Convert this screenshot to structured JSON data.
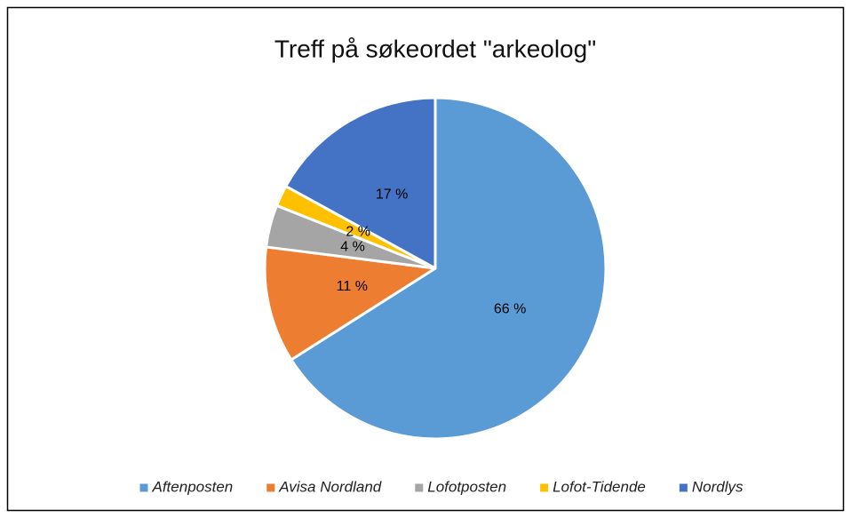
{
  "chart_data": {
    "type": "pie",
    "title": "Treff på søkeordet \"arkeolog\"",
    "categories": [
      "Aftenposten",
      "Avisa Nordland",
      "Lofotposten",
      "Lofot-Tidende",
      "Nordlys"
    ],
    "values": [
      66,
      11,
      4,
      2,
      17
    ],
    "value_labels": [
      "66 %",
      "11 %",
      "4 %",
      "2 %",
      "17 %"
    ],
    "colors": [
      "#5b9bd5",
      "#ed7d31",
      "#a5a5a5",
      "#ffc000",
      "#4472c4"
    ],
    "legend": "bottom"
  }
}
